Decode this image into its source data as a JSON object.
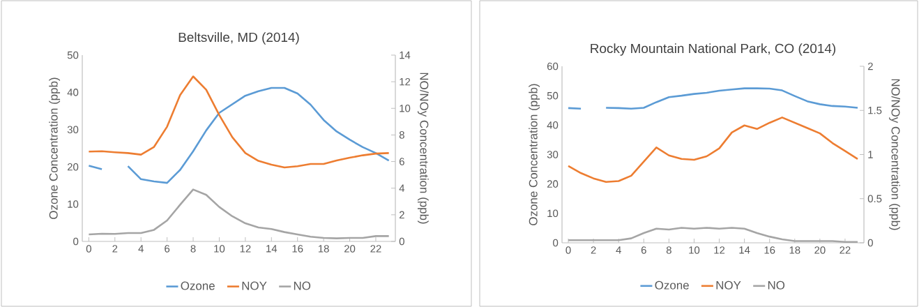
{
  "chart_data": [
    {
      "type": "line",
      "title": "Beltsville, MD (2014)",
      "ylabel": "Ozone Concentration (ppb)",
      "y2label": "NO/NOy Concentration (ppb)",
      "legend": "bottom",
      "x": [
        0,
        1,
        2,
        3,
        4,
        5,
        6,
        7,
        8,
        9,
        10,
        11,
        12,
        13,
        14,
        15,
        16,
        17,
        18,
        19,
        20,
        21,
        22,
        23
      ],
      "xlim": [
        -0.5,
        23.5
      ],
      "xticks": [
        0,
        2,
        4,
        6,
        8,
        10,
        12,
        14,
        16,
        18,
        20,
        22
      ],
      "ylim": [
        0,
        50
      ],
      "yticks": [
        0,
        10,
        20,
        30,
        40,
        50
      ],
      "y2lim": [
        0,
        14
      ],
      "y2ticks": [
        0,
        2,
        4,
        6,
        8,
        10,
        12,
        14
      ],
      "series": [
        {
          "name": "Ozone",
          "color": "#5b9bd5",
          "values": [
            20.3,
            19.4,
            null,
            20.2,
            16.7,
            16.1,
            15.7,
            19.2,
            24.2,
            29.8,
            34.5,
            36.8,
            39.1,
            40.3,
            41.2,
            41.2,
            39.7,
            36.7,
            32.6,
            29.5,
            27.3,
            25.3,
            23.7,
            21.7
          ]
        },
        {
          "name": "NOY",
          "color": "#ed7d31",
          "axis": "y2",
          "values": [
            6.75,
            6.78,
            6.7,
            6.64,
            6.52,
            7.1,
            8.62,
            11.0,
            12.4,
            11.4,
            9.5,
            7.83,
            6.64,
            6.05,
            5.77,
            5.56,
            5.65,
            5.82,
            5.82,
            6.08,
            6.29,
            6.47,
            6.6,
            6.64
          ]
        },
        {
          "name": "NO",
          "color": "#a5a5a5",
          "axis": "y2",
          "values": [
            0.52,
            0.58,
            0.56,
            0.63,
            0.63,
            0.87,
            1.57,
            2.76,
            3.9,
            3.5,
            2.59,
            1.89,
            1.36,
            1.05,
            0.93,
            0.7,
            0.52,
            0.35,
            0.26,
            0.23,
            0.26,
            0.26,
            0.4,
            0.4
          ]
        }
      ]
    },
    {
      "type": "line",
      "title": "Rocky Mountain National Park, CO (2014)",
      "ylabel": "Ozone Concentration (ppb)",
      "y2label": "NO/NOy Concentration (ppb)",
      "legend": "bottom",
      "x": [
        0,
        1,
        2,
        3,
        4,
        5,
        6,
        7,
        8,
        9,
        10,
        11,
        12,
        13,
        14,
        15,
        16,
        17,
        18,
        19,
        20,
        21,
        22,
        23
      ],
      "xlim": [
        -0.5,
        23.5
      ],
      "xticks": [
        0,
        2,
        4,
        6,
        8,
        10,
        12,
        14,
        16,
        18,
        20,
        22
      ],
      "ylim": [
        0,
        60
      ],
      "yticks": [
        0,
        10,
        20,
        30,
        40,
        50,
        60
      ],
      "y2lim": [
        0,
        2
      ],
      "y2ticks": [
        0,
        0.5,
        1,
        1.5,
        2
      ],
      "series": [
        {
          "name": "Ozone",
          "color": "#5b9bd5",
          "values": [
            45.8,
            45.6,
            null,
            45.9,
            45.8,
            45.6,
            45.9,
            47.8,
            49.5,
            50.0,
            50.6,
            51.0,
            51.7,
            52.1,
            52.5,
            52.5,
            52.4,
            51.8,
            49.9,
            48.1,
            47.1,
            46.5,
            46.3,
            45.9
          ]
        },
        {
          "name": "NOY",
          "color": "#ed7d31",
          "axis": "y2",
          "values": [
            0.87,
            0.79,
            0.73,
            0.69,
            0.7,
            0.76,
            0.92,
            1.08,
            0.99,
            0.95,
            0.94,
            0.98,
            1.07,
            1.25,
            1.33,
            1.29,
            1.36,
            1.42,
            1.36,
            1.3,
            1.24,
            1.13,
            1.04,
            0.95
          ]
        },
        {
          "name": "NO",
          "color": "#a5a5a5",
          "axis": "y2",
          "values": [
            0.03,
            0.03,
            0.03,
            0.03,
            0.03,
            0.05,
            0.11,
            0.16,
            0.15,
            0.17,
            0.16,
            0.17,
            0.16,
            0.17,
            0.16,
            0.11,
            0.07,
            0.04,
            0.02,
            0.02,
            0.02,
            0.02,
            0.01,
            0.01
          ]
        }
      ]
    }
  ]
}
